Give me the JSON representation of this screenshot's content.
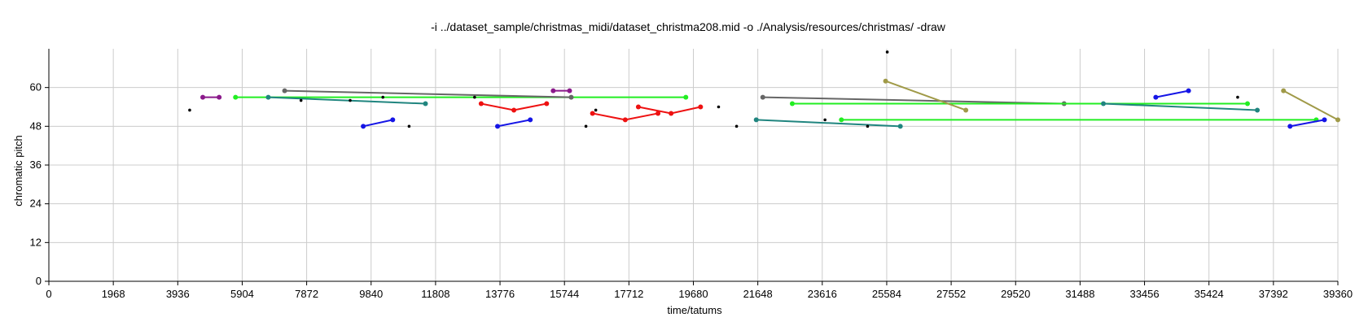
{
  "chart_data": {
    "type": "scatter",
    "title": "-i ../dataset_sample/christmas_midi/dataset_christma208.mid -o ./Analysis/resources/christmas/ -draw",
    "xlabel": "time/tatums",
    "ylabel": "chromatic pitch",
    "xlim": [
      0,
      39360
    ],
    "ylim": [
      0,
      72
    ],
    "x_ticks": [
      0,
      1968,
      3936,
      5904,
      7872,
      9840,
      11808,
      13776,
      15744,
      17712,
      19680,
      21648,
      23616,
      25584,
      27552,
      29520,
      31488,
      33456,
      35424,
      37392,
      39360
    ],
    "y_ticks": [
      0,
      12,
      24,
      36,
      48,
      60
    ],
    "grid": true,
    "colors": {
      "purple": "#8b1a8b",
      "lime": "#22ee22",
      "teal": "#20857f",
      "gray": "#666666",
      "blue": "#1515e6",
      "red": "#ee1111",
      "olive": "#a09a48",
      "black": "#000000"
    },
    "series": [
      {
        "color": "purple",
        "points": [
          [
            4700,
            57
          ],
          [
            5200,
            57
          ]
        ]
      },
      {
        "color": "lime",
        "points": [
          [
            5700,
            57
          ],
          [
            19450,
            57
          ]
        ]
      },
      {
        "color": "teal",
        "points": [
          [
            6700,
            57
          ],
          [
            11500,
            55
          ]
        ]
      },
      {
        "color": "gray",
        "points": [
          [
            7200,
            59
          ],
          [
            15950,
            57
          ]
        ]
      },
      {
        "color": "blue",
        "points": [
          [
            9600,
            48
          ],
          [
            10500,
            50
          ]
        ]
      },
      {
        "color": "red",
        "points": [
          [
            13200,
            55
          ],
          [
            14200,
            53
          ],
          [
            15200,
            55
          ]
        ]
      },
      {
        "color": "blue",
        "points": [
          [
            13700,
            48
          ],
          [
            14700,
            50
          ]
        ]
      },
      {
        "color": "purple",
        "points": [
          [
            15400,
            59
          ],
          [
            15900,
            59
          ]
        ]
      },
      {
        "color": "red",
        "points": [
          [
            16600,
            52
          ],
          [
            17600,
            50
          ],
          [
            18600,
            52
          ]
        ]
      },
      {
        "color": "red",
        "points": [
          [
            18000,
            54
          ],
          [
            19000,
            52
          ],
          [
            19900,
            54
          ]
        ]
      },
      {
        "color": "teal",
        "points": [
          [
            21600,
            50
          ],
          [
            26000,
            48
          ]
        ]
      },
      {
        "color": "gray",
        "points": [
          [
            21800,
            57
          ],
          [
            31000,
            55
          ]
        ]
      },
      {
        "color": "lime",
        "points": [
          [
            22700,
            55
          ],
          [
            36600,
            55
          ]
        ]
      },
      {
        "color": "lime",
        "points": [
          [
            24200,
            50
          ],
          [
            38700,
            50
          ]
        ]
      },
      {
        "color": "olive",
        "points": [
          [
            25550,
            62
          ],
          [
            28000,
            53
          ]
        ]
      },
      {
        "color": "teal",
        "points": [
          [
            32200,
            55
          ],
          [
            36900,
            53
          ]
        ]
      },
      {
        "color": "blue",
        "points": [
          [
            33800,
            57
          ],
          [
            34800,
            59
          ]
        ]
      },
      {
        "color": "olive",
        "points": [
          [
            37700,
            59
          ],
          [
            39360,
            50
          ]
        ]
      },
      {
        "color": "blue",
        "points": [
          [
            37900,
            48
          ],
          [
            38950,
            50
          ]
        ]
      }
    ],
    "singles": [
      [
        4300,
        53
      ],
      [
        7700,
        56
      ],
      [
        9200,
        56
      ],
      [
        10200,
        57
      ],
      [
        11000,
        48
      ],
      [
        13000,
        57
      ],
      [
        16400,
        48
      ],
      [
        16700,
        53
      ],
      [
        20450,
        54
      ],
      [
        21000,
        48
      ],
      [
        23700,
        50
      ],
      [
        25000,
        48
      ],
      [
        25600,
        71
      ],
      [
        36300,
        57
      ]
    ]
  }
}
